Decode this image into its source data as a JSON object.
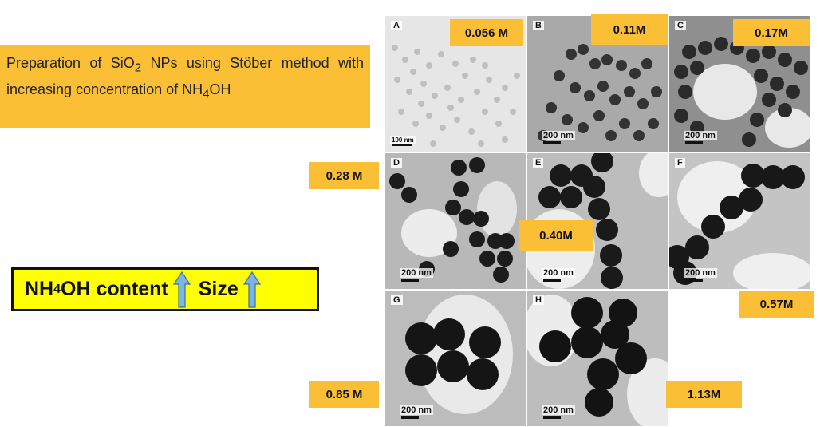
{
  "description": {
    "line_prefix": "Preparation of SiO",
    "sub_2": "2",
    "line_mid": " NPs using Stöber method with increasing concentration of NH",
    "sub_4": "4",
    "line_end": "OH"
  },
  "headline": {
    "nh": "NH",
    "sub": "4",
    "rest": "OH content",
    "size": "Size"
  },
  "concentrations": [
    "0.056 M",
    "0.11M",
    "0.17M",
    "0.28 M",
    "0.40M",
    "0.57M",
    "0.85 M",
    "1.13M"
  ],
  "panels": [
    {
      "letter": "A",
      "scale": "100 nm"
    },
    {
      "letter": "B",
      "scale": "200 nm"
    },
    {
      "letter": "C",
      "scale": "200 nm"
    },
    {
      "letter": "D",
      "scale": "200 nm"
    },
    {
      "letter": "E",
      "scale": "200 nm"
    },
    {
      "letter": "F",
      "scale": "200 nm"
    },
    {
      "letter": "G",
      "scale": "200 nm"
    },
    {
      "letter": "H",
      "scale": "200 nm"
    }
  ],
  "colors": {
    "label_bg": "#fbbf35",
    "headline_bg": "#ffff00",
    "arrow": "#6fa8dc",
    "particle": "#222222"
  }
}
